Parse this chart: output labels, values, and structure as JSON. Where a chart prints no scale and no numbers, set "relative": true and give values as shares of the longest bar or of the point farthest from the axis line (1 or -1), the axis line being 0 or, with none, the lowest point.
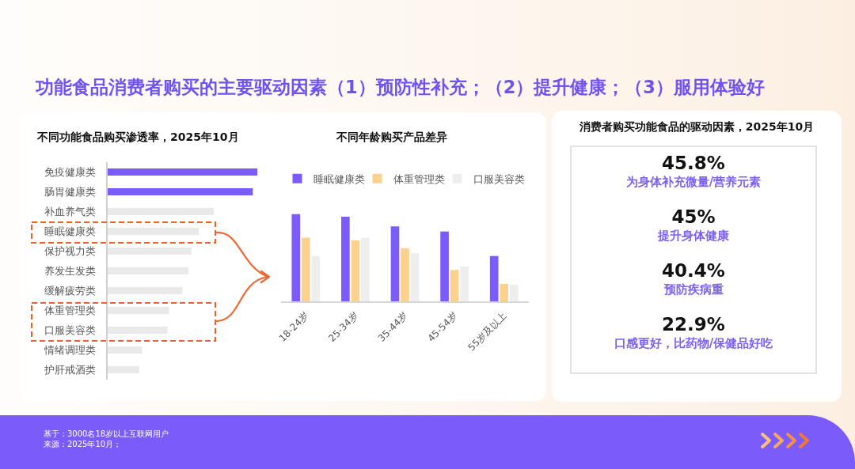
{
  "chart_data": [
    {
      "type": "other",
      "title": "功能食品消费者购买的主要驱动因素（1）预防性补充；（2）提升健康；（3）服用体验好",
      "annotations": [
        "基于：3000名18岁以上互联网用户",
        "来源：2025年10月；"
      ]
    },
    {
      "type": "bar",
      "title": "不同功能食品购买渗透率，2025年10月",
      "orientation": "horizontal",
      "relative": true,
      "categories": [
        "免疫健康类",
        "肠胃健康类",
        "补血养气类",
        "睡眠健康类",
        "保护视力类",
        "养发生发类",
        "缓解疲劳类",
        "体重管理类",
        "口服美容类",
        "情绪调理类",
        "护肝戒酒类"
      ],
      "values": [
        1,
        0.97,
        0.71,
        0.61,
        0.56,
        0.54,
        0.5,
        0.41,
        0.4,
        0.23,
        0.21
      ],
      "colors": [
        "#7b5cfa",
        "#7b5cfa",
        "#e9e9e9",
        "#e9e9e9",
        "#e9e9e9",
        "#e9e9e9",
        "#e9e9e9",
        "#e9e9e9",
        "#e9e9e9",
        "#e9e9e9",
        "#e9e9e9"
      ]
    },
    {
      "type": "bar",
      "title": "不同年龄购买产品差异",
      "relative": true,
      "categories": [
        "18-24岁",
        "25-34岁",
        "35-44岁",
        "45-54岁",
        "55岁及以上"
      ],
      "series": [
        {
          "name": "睡眠健康类",
          "color": "#7b5cfa",
          "values": [
            1,
            0.97,
            0.86,
            0.8,
            0.52
          ]
        },
        {
          "name": "体重管理类",
          "color": "#fcd18e",
          "values": [
            0.73,
            0.7,
            0.61,
            0.36,
            0.2
          ]
        },
        {
          "name": "口服美容类",
          "color": "#eeeeee",
          "values": [
            0.52,
            0.73,
            0.55,
            0.4,
            0.19
          ]
        }
      ],
      "legend": "top"
    },
    {
      "type": "other",
      "title": "消费者购买功能食品的驱动因素，2025年10月",
      "annotations": [
        "45.8%",
        "为身体补充微量/营养元素",
        "45%",
        "提升身体健康",
        "40.4%",
        "预防疾病重",
        "22.9%",
        "口感更好，比药物/保健品好吃"
      ]
    }
  ]
}
